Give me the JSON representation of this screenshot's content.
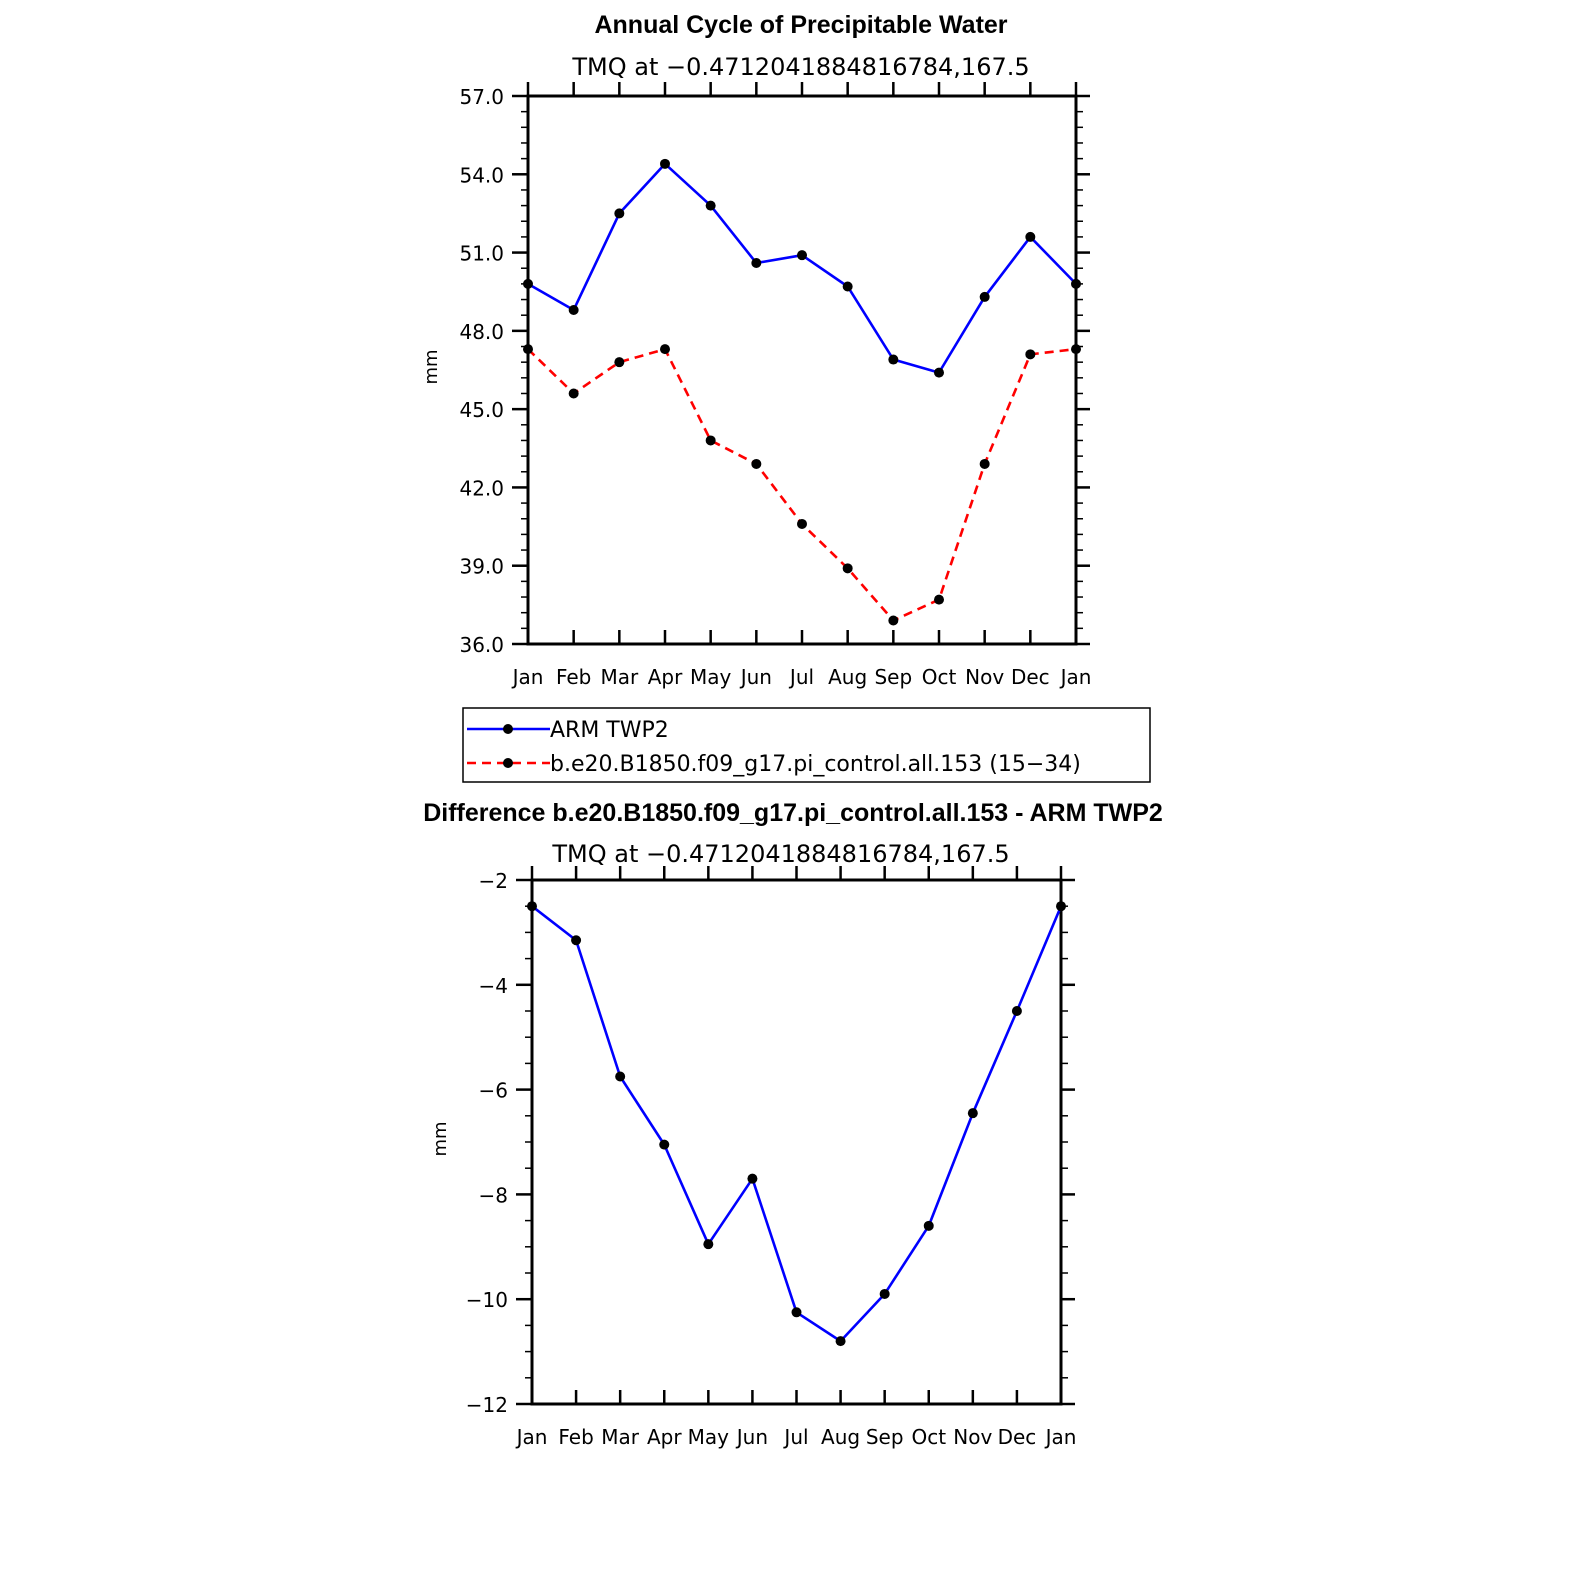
{
  "chart_data": [
    {
      "type": "line",
      "title": "Annual Cycle of Precipitable Water",
      "subtitle": "TMQ at −0.4712041884816784,167.5",
      "xlabel": "",
      "ylabel": "mm",
      "categories": [
        "Jan",
        "Feb",
        "Mar",
        "Apr",
        "May",
        "Jun",
        "Jul",
        "Aug",
        "Sep",
        "Oct",
        "Nov",
        "Dec",
        "Jan"
      ],
      "ylim": [
        36.0,
        57.0
      ],
      "yticks": [
        "36.0",
        "39.0",
        "42.0",
        "45.0",
        "48.0",
        "51.0",
        "54.0",
        "57.0"
      ],
      "series": [
        {
          "name": "ARM TWP2",
          "color": "#0000ff",
          "style": "solid",
          "values": [
            49.8,
            48.8,
            52.5,
            54.4,
            52.8,
            50.6,
            50.9,
            49.7,
            46.9,
            46.4,
            49.3,
            51.6,
            49.8
          ]
        },
        {
          "name": "b.e20.B1850.f09_g17.pi_control.all.153 (15−34)",
          "color": "#ff0000",
          "style": "dashed",
          "values": [
            47.3,
            45.6,
            46.8,
            47.3,
            43.8,
            42.9,
            40.6,
            38.9,
            36.9,
            37.7,
            42.9,
            47.1,
            47.3
          ]
        }
      ],
      "legend": "below"
    },
    {
      "type": "line",
      "title": "Difference b.e20.B1850.f09_g17.pi_control.all.153 - ARM TWP2",
      "subtitle": "TMQ at −0.4712041884816784,167.5",
      "xlabel": "",
      "ylabel": "mm",
      "categories": [
        "Jan",
        "Feb",
        "Mar",
        "Apr",
        "May",
        "Jun",
        "Jul",
        "Aug",
        "Sep",
        "Oct",
        "Nov",
        "Dec",
        "Jan"
      ],
      "ylim": [
        -12,
        -2
      ],
      "yticks": [
        "−12",
        "−10",
        "−8",
        "−6",
        "−4",
        "−2"
      ],
      "series": [
        {
          "name": "Difference",
          "color": "#0000ff",
          "style": "solid",
          "values": [
            -2.5,
            -3.15,
            -5.75,
            -7.05,
            -8.95,
            -7.7,
            -10.25,
            -10.8,
            -9.9,
            -8.6,
            -6.45,
            -4.5,
            -2.5
          ]
        }
      ]
    }
  ]
}
